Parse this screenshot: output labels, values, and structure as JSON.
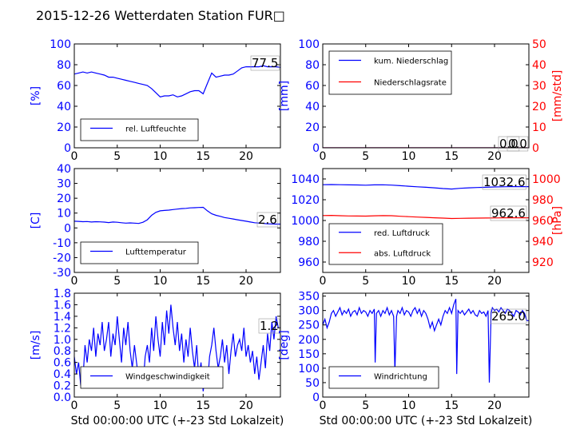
{
  "title": "2015-12-26 Wetterdaten Station FUR□",
  "x_common_label": "Std 00:00:00 UTC (+-23 Std Lokalzeit)",
  "chart_data": [
    {
      "id": "humidity",
      "type": "line",
      "xlim": [
        0,
        24
      ],
      "x_ticks": [
        0,
        5,
        10,
        15,
        20
      ],
      "ylim": [
        0,
        100
      ],
      "y_ticks": [
        0,
        20,
        40,
        60,
        80,
        100
      ],
      "ylabel": "[%]",
      "ylabel_color": "#0000ff",
      "tick_color_left": "#0000ff",
      "xlabel": "",
      "annotations": [
        "77.5"
      ],
      "legend": {
        "placement": "lower-left",
        "entries": [
          "rel. Luftfeuchte"
        ]
      },
      "series": [
        {
          "name": "rel. Luftfeuchte",
          "color": "#0000ff",
          "x": [
            0,
            0.5,
            1,
            1.5,
            2,
            2.5,
            3,
            3.5,
            4,
            4.5,
            5,
            5.5,
            6,
            6.5,
            7,
            7.5,
            8,
            8.5,
            9,
            9.5,
            10,
            10.5,
            11,
            11.5,
            12,
            12.5,
            13,
            13.5,
            14,
            14.5,
            15,
            15.5,
            16,
            16.5,
            17,
            17.5,
            18,
            18.5,
            19,
            19.5,
            20,
            20.5,
            21,
            21.5,
            22,
            22.5,
            23,
            23.5,
            24
          ],
          "values": [
            71,
            72,
            73,
            72,
            73,
            72,
            71,
            70,
            68,
            68,
            67,
            66,
            65,
            64,
            63,
            62,
            61,
            60,
            57,
            53,
            49,
            50,
            50,
            51,
            49,
            50,
            52,
            54,
            55,
            55,
            52,
            62,
            72,
            68,
            69,
            70,
            70,
            71,
            74,
            77,
            78,
            78,
            78,
            78,
            79,
            78,
            78,
            78,
            77.5
          ]
        }
      ]
    },
    {
      "id": "precipitation",
      "type": "line",
      "xlim": [
        0,
        24
      ],
      "x_ticks": [
        0,
        5,
        10,
        15,
        20
      ],
      "ylim": [
        0,
        100
      ],
      "y_ticks": [
        0,
        20,
        40,
        60,
        80,
        100
      ],
      "ylabel": "[mm]",
      "ylabel_color": "#0000ff",
      "tick_color_left": "#0000ff",
      "ylim_right": [
        0,
        50
      ],
      "y_ticks_right": [
        0,
        10,
        20,
        30,
        40,
        50
      ],
      "ylabel_right": "[mm/std]",
      "ylabel_right_color": "#ff0000",
      "tick_color_right": "#ff0000",
      "annotations": [
        "0.0",
        "0.0"
      ],
      "legend": {
        "placement": "upper-left",
        "entries": [
          "kum. Niederschlag",
          "Niederschlagsrate"
        ]
      },
      "series": [
        {
          "name": "kum. Niederschlag",
          "color": "#0000ff",
          "axis": "left",
          "x": [
            0,
            24
          ],
          "values": [
            0,
            0
          ]
        },
        {
          "name": "Niederschlagsrate",
          "color": "#ff0000",
          "axis": "right",
          "x": [
            0,
            24
          ],
          "values": [
            0,
            0
          ]
        }
      ]
    },
    {
      "id": "temperature",
      "type": "line",
      "xlim": [
        0,
        24
      ],
      "x_ticks": [
        0,
        5,
        10,
        15,
        20
      ],
      "ylim": [
        -30,
        40
      ],
      "y_ticks": [
        -30,
        -20,
        -10,
        0,
        10,
        20,
        30,
        40
      ],
      "ylabel": "[C]",
      "ylabel_color": "#0000ff",
      "tick_color_left": "#0000ff",
      "annotations": [
        "2.6"
      ],
      "legend": {
        "placement": "lower-left",
        "entries": [
          "Lufttemperatur"
        ]
      },
      "series": [
        {
          "name": "Lufttemperatur",
          "color": "#0000ff",
          "x": [
            0,
            0.5,
            1,
            1.5,
            2,
            2.5,
            3,
            3.5,
            4,
            4.5,
            5,
            5.5,
            6,
            6.5,
            7,
            7.5,
            8,
            8.5,
            9,
            9.5,
            10,
            10.5,
            11,
            11.5,
            12,
            12.5,
            13,
            13.5,
            14,
            14.5,
            15,
            15.5,
            16,
            16.5,
            17,
            17.5,
            18,
            18.5,
            19,
            19.5,
            20,
            20.5,
            21,
            21.5,
            22,
            22.5,
            23,
            23.5,
            24
          ],
          "values": [
            4.5,
            4.4,
            4.2,
            4.3,
            4.0,
            4.2,
            4.1,
            3.9,
            3.6,
            4.0,
            3.8,
            3.5,
            3.2,
            3.4,
            3.2,
            3.0,
            3.8,
            5.5,
            8.5,
            10.5,
            11.5,
            11.8,
            12.0,
            12.4,
            12.7,
            13.0,
            13.2,
            13.5,
            13.6,
            13.8,
            13.9,
            11.5,
            9.5,
            8.5,
            7.8,
            7.0,
            6.5,
            6.0,
            5.5,
            5.0,
            4.5,
            4.0,
            3.5,
            3.3,
            3.0,
            2.8,
            2.7,
            2.6,
            2.6
          ]
        }
      ]
    },
    {
      "id": "pressure",
      "type": "line",
      "xlim": [
        0,
        24
      ],
      "x_ticks": [
        0,
        5,
        10,
        15,
        20
      ],
      "ylim": [
        950,
        1050
      ],
      "y_ticks": [
        960,
        980,
        1000,
        1020,
        1040
      ],
      "ylabel": "",
      "tick_color_left": "#0000ff",
      "ylim_right": [
        910,
        1010
      ],
      "y_ticks_right": [
        920,
        940,
        960,
        980,
        1000
      ],
      "ylabel_right": "[hPa]",
      "ylabel_right_color": "#ff0000",
      "tick_color_right": "#ff0000",
      "annotations": [
        "1032.6",
        "962.6"
      ],
      "legend": {
        "placement": "lower-left",
        "entries": [
          "red. Luftdruck",
          "abs. Luftdruck"
        ]
      },
      "series": [
        {
          "name": "red. Luftdruck",
          "color": "#0000ff",
          "axis": "left",
          "x": [
            0,
            1,
            2,
            3,
            4,
            5,
            6,
            7,
            8,
            9,
            10,
            11,
            12,
            13,
            14,
            15,
            16,
            17,
            18,
            19,
            20,
            21,
            22,
            23,
            24
          ],
          "values": [
            1034.5,
            1034.6,
            1034.5,
            1034.3,
            1034.2,
            1034.0,
            1034.3,
            1034.4,
            1034.1,
            1033.5,
            1033.0,
            1032.5,
            1032.0,
            1031.5,
            1030.8,
            1030.3,
            1031.0,
            1031.5,
            1031.8,
            1032.0,
            1032.3,
            1032.5,
            1032.6,
            1032.6,
            1032.6
          ]
        },
        {
          "name": "abs. Luftdruck",
          "color": "#ff0000",
          "axis": "right",
          "x": [
            0,
            1,
            2,
            3,
            4,
            5,
            6,
            7,
            8,
            9,
            10,
            11,
            12,
            13,
            14,
            15,
            16,
            17,
            18,
            19,
            20,
            21,
            22,
            23,
            24
          ],
          "values": [
            964.8,
            964.9,
            964.6,
            964.4,
            964.3,
            964.2,
            964.5,
            964.7,
            964.6,
            964.1,
            963.7,
            963.3,
            963.0,
            962.6,
            962.3,
            961.9,
            962.1,
            962.2,
            962.3,
            962.4,
            962.5,
            962.6,
            962.6,
            962.6,
            962.6
          ]
        }
      ]
    },
    {
      "id": "windspeed",
      "type": "line",
      "xlim": [
        0,
        24
      ],
      "x_ticks": [
        0,
        5,
        10,
        15,
        20
      ],
      "ylim": [
        0,
        1.8
      ],
      "y_ticks": [
        0.0,
        0.2,
        0.4,
        0.6,
        0.8,
        1.0,
        1.2,
        1.4,
        1.6,
        1.8
      ],
      "ylabel": "[m/s]",
      "ylabel_color": "#0000ff",
      "tick_color_left": "#0000ff",
      "xlabel": "Std 00:00:00 UTC (+-23 Std Lokalzeit)",
      "annotations": [
        "1.2"
      ],
      "legend": {
        "placement": "lower-left",
        "entries": [
          "Windgeschwindigkeit"
        ]
      },
      "series": [
        {
          "name": "Windgeschwindigkeit",
          "color": "#0000ff",
          "x": [
            0,
            0.25,
            0.5,
            0.75,
            1,
            1.25,
            1.5,
            1.75,
            2,
            2.25,
            2.5,
            2.75,
            3,
            3.25,
            3.5,
            3.75,
            4,
            4.25,
            4.5,
            4.75,
            5,
            5.25,
            5.5,
            5.75,
            6,
            6.25,
            6.5,
            6.75,
            7,
            7.25,
            7.5,
            7.75,
            8,
            8.25,
            8.5,
            8.75,
            9,
            9.25,
            9.5,
            9.75,
            10,
            10.25,
            10.5,
            10.75,
            11,
            11.25,
            11.5,
            11.75,
            12,
            12.25,
            12.5,
            12.75,
            13,
            13.25,
            13.5,
            13.75,
            14,
            14.25,
            14.5,
            14.75,
            15,
            15.25,
            15.5,
            15.75,
            16,
            16.25,
            16.5,
            16.75,
            17,
            17.25,
            17.5,
            17.75,
            18,
            18.25,
            18.5,
            18.75,
            19,
            19.25,
            19.5,
            19.75,
            20,
            20.25,
            20.5,
            20.75,
            21,
            21.25,
            21.5,
            21.75,
            22,
            22.25,
            22.5,
            22.75,
            23,
            23.25,
            23.5,
            23.75,
            24
          ],
          "values": [
            0.7,
            0.4,
            0.6,
            0.2,
            0.3,
            0.9,
            0.6,
            1.0,
            0.8,
            1.2,
            0.7,
            1.1,
            0.9,
            1.3,
            0.8,
            1.0,
            1.3,
            0.7,
            1.1,
            0.9,
            1.4,
            1.0,
            0.6,
            1.2,
            0.9,
            1.3,
            0.8,
            0.5,
            0.9,
            0.6,
            0.3,
            0.5,
            0.2,
            0.7,
            0.9,
            0.6,
            1.2,
            0.8,
            1.4,
            1.0,
            0.7,
            1.3,
            0.9,
            1.5,
            1.1,
            1.6,
            1.2,
            0.9,
            1.3,
            0.8,
            1.1,
            0.6,
            1.0,
            0.7,
            1.2,
            0.8,
            0.5,
            0.9,
            0.3,
            0.6,
            0.1,
            0.4,
            0.2,
            0.7,
            0.9,
            1.2,
            0.8,
            0.5,
            0.7,
            1.0,
            0.6,
            0.9,
            0.4,
            0.8,
            1.1,
            0.7,
            0.9,
            1.0,
            0.8,
            1.2,
            0.7,
            0.9,
            0.6,
            0.8,
            0.4,
            0.7,
            0.3,
            0.6,
            0.9,
            0.5,
            1.1,
            0.8,
            1.3,
            1.0,
            1.4,
            1.2,
            1.2
          ]
        }
      ]
    },
    {
      "id": "winddirection",
      "type": "line",
      "xlim": [
        0,
        24
      ],
      "x_ticks": [
        0,
        5,
        10,
        15,
        20
      ],
      "ylim": [
        0,
        360
      ],
      "y_ticks": [
        0,
        50,
        100,
        150,
        200,
        250,
        300,
        350
      ],
      "ylabel": "[deg]",
      "ylabel_color": "#0000ff",
      "tick_color_left": "#0000ff",
      "xlabel": "Std 00:00:00 UTC (+-23 Std Lokalzeit)",
      "annotations": [
        "265.0"
      ],
      "legend": {
        "placement": "lower-left",
        "entries": [
          "Windrichtung"
        ]
      },
      "series": [
        {
          "name": "Windrichtung",
          "color": "#0000ff",
          "x": [
            0,
            0.25,
            0.5,
            0.75,
            1,
            1.25,
            1.5,
            1.75,
            2,
            2.25,
            2.5,
            2.75,
            3,
            3.25,
            3.5,
            3.75,
            4,
            4.25,
            4.5,
            4.75,
            5,
            5.25,
            5.5,
            5.75,
            6,
            6.1,
            6.25,
            6.5,
            6.75,
            7,
            7.25,
            7.5,
            7.75,
            8,
            8.25,
            8.4,
            8.6,
            8.75,
            9,
            9.25,
            9.5,
            9.75,
            10,
            10.25,
            10.5,
            10.75,
            11,
            11.25,
            11.5,
            11.75,
            12,
            12.25,
            12.5,
            12.75,
            13,
            13.25,
            13.5,
            13.75,
            14,
            14.25,
            14.5,
            14.75,
            15,
            15.25,
            15.5,
            15.6,
            15.75,
            16,
            16.25,
            16.5,
            16.75,
            17,
            17.25,
            17.5,
            17.75,
            18,
            18.25,
            18.5,
            18.75,
            19,
            19.25,
            19.4,
            19.6,
            19.75,
            20,
            20.25,
            20.5,
            20.75,
            21,
            21.25,
            21.5,
            21.75,
            22,
            22.25,
            22.5,
            22.75,
            23,
            23.25,
            23.5,
            23.75,
            24
          ],
          "values": [
            250,
            270,
            240,
            260,
            290,
            300,
            280,
            295,
            310,
            285,
            300,
            290,
            305,
            280,
            295,
            300,
            285,
            310,
            290,
            300,
            295,
            280,
            300,
            290,
            305,
            120,
            290,
            300,
            280,
            300,
            290,
            310,
            285,
            300,
            280,
            90,
            280,
            300,
            290,
            310,
            285,
            300,
            295,
            280,
            300,
            310,
            290,
            305,
            280,
            300,
            290,
            270,
            240,
            260,
            230,
            250,
            270,
            250,
            280,
            300,
            290,
            310,
            290,
            320,
            340,
            80,
            300,
            290,
            300,
            285,
            295,
            305,
            290,
            300,
            285,
            280,
            300,
            290,
            295,
            280,
            300,
            50,
            290,
            310,
            300,
            305,
            295,
            310,
            300,
            290,
            305,
            300,
            290,
            280,
            300,
            295,
            285,
            300,
            290,
            265,
            265
          ]
        }
      ]
    }
  ]
}
